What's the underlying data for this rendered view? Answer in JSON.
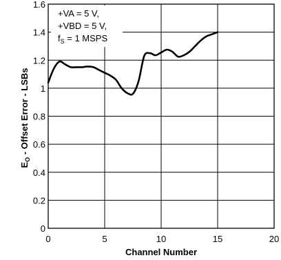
{
  "chart_data": {
    "type": "line",
    "xlabel": "Channel Number",
    "ylabel": {
      "main": "E",
      "sub": "O",
      "rest": " - Offset Error - LSBs"
    },
    "xlim": [
      0,
      20
    ],
    "ylim": [
      0,
      1.6
    ],
    "xticks": [
      "0",
      "5",
      "10",
      "15",
      "20"
    ],
    "yticks": [
      "0",
      "0.2",
      "0.4",
      "0.6",
      "0.8",
      "1",
      "1.2",
      "1.4",
      "1.6"
    ],
    "grid": true,
    "annotation": {
      "line1": "+VA = 5 V,",
      "line2": "+VBD = 5 V,",
      "line3_main": "f",
      "line3_sub": "S",
      "line3_rest": " = 1 MSPS"
    },
    "series": [
      {
        "x": [
          0,
          0.5,
          1,
          1.5,
          2,
          2.5,
          3,
          3.5,
          4,
          4.5,
          5,
          5.5,
          6,
          6.5,
          7,
          7.5,
          8,
          8.5,
          9,
          9.5,
          10,
          10.5,
          11,
          11.5,
          12,
          12.5,
          13,
          13.5,
          14,
          14.5,
          15
        ],
        "values": [
          1.04,
          1.14,
          1.19,
          1.17,
          1.15,
          1.15,
          1.15,
          1.155,
          1.15,
          1.13,
          1.11,
          1.09,
          1.06,
          1.0,
          0.965,
          0.96,
          1.05,
          1.23,
          1.25,
          1.235,
          1.255,
          1.275,
          1.26,
          1.225,
          1.235,
          1.26,
          1.3,
          1.34,
          1.37,
          1.385,
          1.4
        ]
      }
    ]
  }
}
